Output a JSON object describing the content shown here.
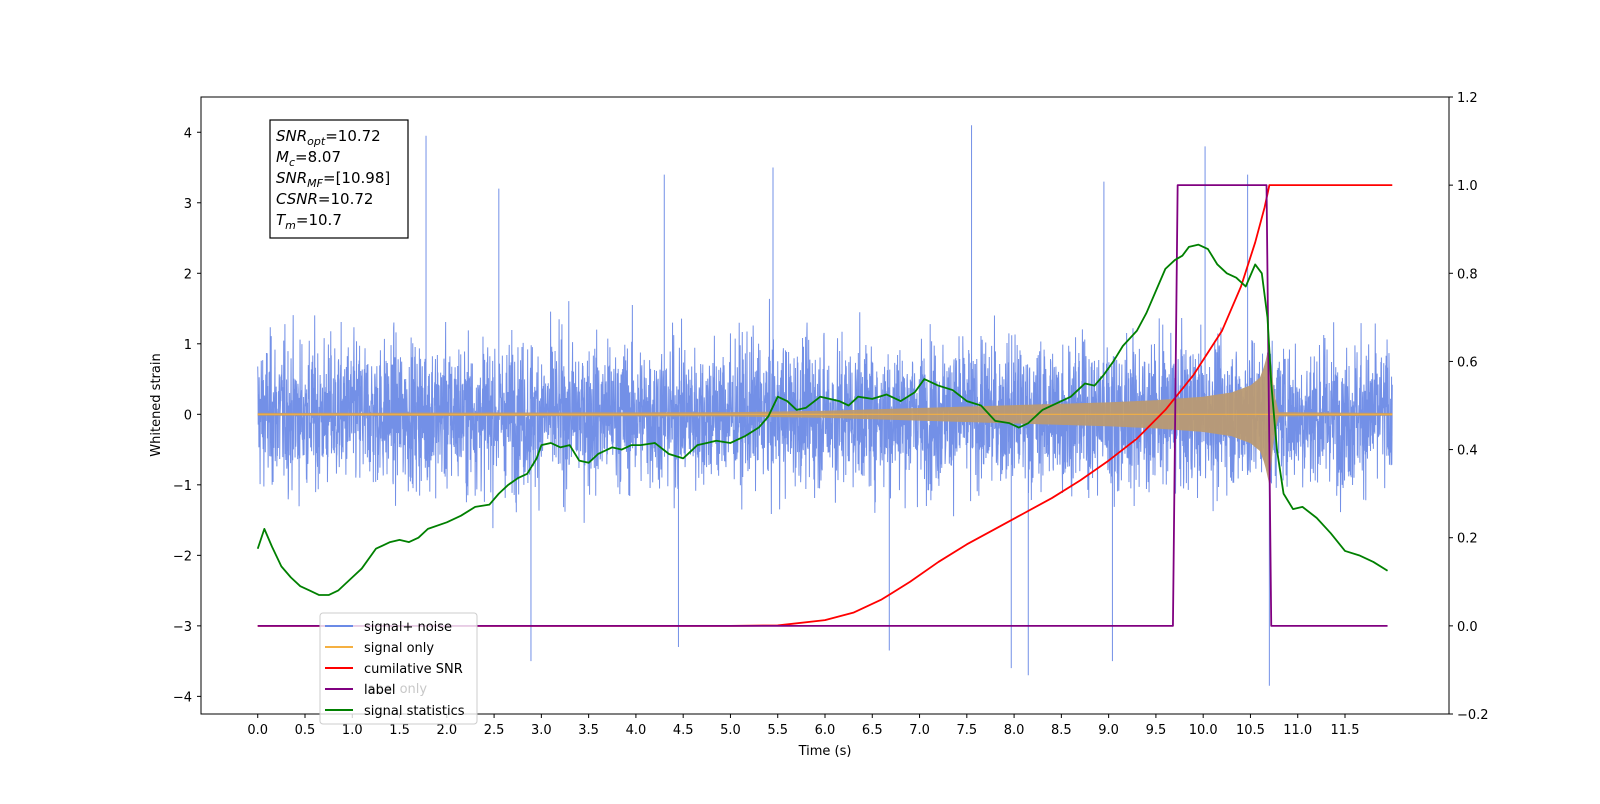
{
  "chart_data": {
    "type": "line",
    "title": "",
    "xlabel": "Time (s)",
    "ylabel": "Whitened strain",
    "ylabel_right": "",
    "xlim": [
      -0.6,
      12.6
    ],
    "ylim": [
      -4.25,
      4.5
    ],
    "ylim_right": [
      -0.2,
      1.2
    ],
    "x_ticks": [
      "0.0",
      "0.5",
      "1.0",
      "1.5",
      "2.0",
      "2.5",
      "3.0",
      "3.5",
      "4.0",
      "4.5",
      "5.0",
      "5.5",
      "6.0",
      "6.5",
      "7.0",
      "7.5",
      "8.0",
      "8.5",
      "9.0",
      "9.5",
      "10.0",
      "10.5",
      "11.0",
      "11.5"
    ],
    "y_ticks": [
      "4",
      "3",
      "2",
      "1",
      "0",
      "−1",
      "−2",
      "−3",
      "−4"
    ],
    "y_ticks_right": [
      "1.2",
      "1.0",
      "0.8",
      "0.6",
      "0.4",
      "0.2",
      "0.0",
      "−0.2"
    ],
    "grid": false,
    "legend_position": "bottom-left",
    "legend": [
      "signal+ noise",
      "signal only",
      "cumilative SNR",
      "label",
      "signal statistics"
    ],
    "legend_overlap_text": "label only",
    "annotation": {
      "lines": [
        {
          "base": "SNR",
          "sub": "opt",
          "rest": "=10.72"
        },
        {
          "base": "M",
          "sub": "c",
          "rest": "=8.07"
        },
        {
          "base": "SNR",
          "sub": "MF",
          "rest": "=[10.98]"
        },
        {
          "base": "CSNR",
          "sub": "",
          "rest": "=10.72"
        },
        {
          "base": "T",
          "sub": "m",
          "rest": "=10.7"
        }
      ]
    },
    "colors": {
      "signal_noise": "#6b8ae6",
      "signal_only": "#f5b041",
      "signal_fill": "#b99a73",
      "cumulative_snr": "#ff0000",
      "label": "#800080",
      "signal_statistics": "#008000"
    },
    "series": [
      {
        "name": "signal+ noise",
        "axis": "left",
        "description_points": {
          "x_range": [
            0.0,
            12.0
          ],
          "envelope_upper_typical": 1.6,
          "envelope_lower_typical": -1.6,
          "spikes": [
            {
              "x": 1.78,
              "y": 3.95
            },
            {
              "x": 7.55,
              "y": 4.1
            },
            {
              "x": 10.02,
              "y": 3.8
            },
            {
              "x": 10.47,
              "y": 3.4
            },
            {
              "x": 5.45,
              "y": 3.5
            },
            {
              "x": 4.3,
              "y": 3.4
            },
            {
              "x": 8.95,
              "y": 3.3
            },
            {
              "x": 2.55,
              "y": 3.2
            },
            {
              "x": 10.7,
              "y": -3.85
            },
            {
              "x": 7.97,
              "y": -3.6
            },
            {
              "x": 9.04,
              "y": -3.5
            },
            {
              "x": 8.15,
              "y": -3.7
            },
            {
              "x": 2.89,
              "y": -3.5
            },
            {
              "x": 4.45,
              "y": -3.3
            },
            {
              "x": 6.68,
              "y": -3.35
            }
          ]
        }
      },
      {
        "name": "signal only",
        "axis": "left",
        "envelope": {
          "x": [
            0,
            5.0,
            6.0,
            7.0,
            8.0,
            9.0,
            9.5,
            10.0,
            10.3,
            10.5,
            10.6,
            10.65,
            10.7,
            10.75,
            10.8,
            12.0
          ],
          "amplitude": [
            0.02,
            0.03,
            0.05,
            0.09,
            0.13,
            0.17,
            0.2,
            0.25,
            0.31,
            0.41,
            0.52,
            0.7,
            1.0,
            0.3,
            0.03,
            0.02
          ]
        }
      },
      {
        "name": "cumilative SNR",
        "axis": "right",
        "x": [
          0.0,
          5.0,
          5.5,
          6.0,
          6.3,
          6.6,
          6.9,
          7.2,
          7.5,
          7.8,
          8.1,
          8.4,
          8.7,
          9.0,
          9.3,
          9.6,
          9.9,
          10.2,
          10.4,
          10.55,
          10.65,
          10.7,
          12.0
        ],
        "values": [
          0.0,
          0.0,
          0.001,
          0.013,
          0.03,
          0.06,
          0.1,
          0.145,
          0.185,
          0.22,
          0.255,
          0.29,
          0.33,
          0.375,
          0.425,
          0.49,
          0.57,
          0.67,
          0.77,
          0.87,
          0.95,
          1.0,
          1.0
        ]
      },
      {
        "name": "label",
        "axis": "right",
        "x": [
          0.0,
          9.68,
          9.73,
          10.67,
          10.72,
          11.95
        ],
        "values": [
          0.0,
          0.0,
          1.0,
          1.0,
          0.0,
          0.0
        ]
      },
      {
        "name": "signal statistics",
        "axis": "right",
        "x": [
          0.0,
          0.07,
          0.15,
          0.25,
          0.35,
          0.45,
          0.55,
          0.65,
          0.75,
          0.85,
          1.0,
          1.1,
          1.25,
          1.4,
          1.5,
          1.6,
          1.7,
          1.8,
          2.0,
          2.15,
          2.3,
          2.45,
          2.55,
          2.65,
          2.75,
          2.85,
          2.95,
          3.0,
          3.1,
          3.2,
          3.3,
          3.4,
          3.5,
          3.6,
          3.75,
          3.85,
          3.95,
          4.05,
          4.2,
          4.35,
          4.5,
          4.65,
          4.75,
          4.85,
          5.0,
          5.15,
          5.3,
          5.4,
          5.5,
          5.6,
          5.7,
          5.8,
          5.95,
          6.05,
          6.15,
          6.25,
          6.35,
          6.5,
          6.65,
          6.8,
          6.95,
          7.05,
          7.2,
          7.35,
          7.5,
          7.65,
          7.8,
          7.95,
          8.05,
          8.15,
          8.3,
          8.45,
          8.6,
          8.75,
          8.85,
          8.95,
          9.05,
          9.15,
          9.3,
          9.4,
          9.5,
          9.6,
          9.7,
          9.78,
          9.85,
          9.95,
          10.05,
          10.15,
          10.25,
          10.35,
          10.45,
          10.55,
          10.62,
          10.68,
          10.72,
          10.78,
          10.85,
          10.95,
          11.05,
          11.2,
          11.35,
          11.5,
          11.65,
          11.8,
          11.95
        ],
        "values": [
          0.175,
          0.22,
          0.18,
          0.135,
          0.11,
          0.09,
          0.08,
          0.07,
          0.07,
          0.08,
          0.11,
          0.13,
          0.175,
          0.19,
          0.195,
          0.19,
          0.2,
          0.22,
          0.235,
          0.25,
          0.27,
          0.275,
          0.3,
          0.32,
          0.335,
          0.345,
          0.38,
          0.41,
          0.415,
          0.405,
          0.41,
          0.375,
          0.37,
          0.39,
          0.405,
          0.4,
          0.41,
          0.41,
          0.415,
          0.39,
          0.38,
          0.41,
          0.415,
          0.42,
          0.415,
          0.43,
          0.45,
          0.475,
          0.52,
          0.51,
          0.49,
          0.495,
          0.52,
          0.515,
          0.51,
          0.5,
          0.52,
          0.515,
          0.525,
          0.51,
          0.53,
          0.56,
          0.545,
          0.535,
          0.51,
          0.5,
          0.465,
          0.46,
          0.45,
          0.46,
          0.49,
          0.505,
          0.52,
          0.55,
          0.545,
          0.57,
          0.6,
          0.635,
          0.67,
          0.71,
          0.76,
          0.81,
          0.83,
          0.84,
          0.86,
          0.865,
          0.855,
          0.82,
          0.8,
          0.79,
          0.77,
          0.82,
          0.8,
          0.7,
          0.55,
          0.4,
          0.3,
          0.265,
          0.27,
          0.245,
          0.21,
          0.17,
          0.16,
          0.145,
          0.125
        ]
      }
    ]
  }
}
